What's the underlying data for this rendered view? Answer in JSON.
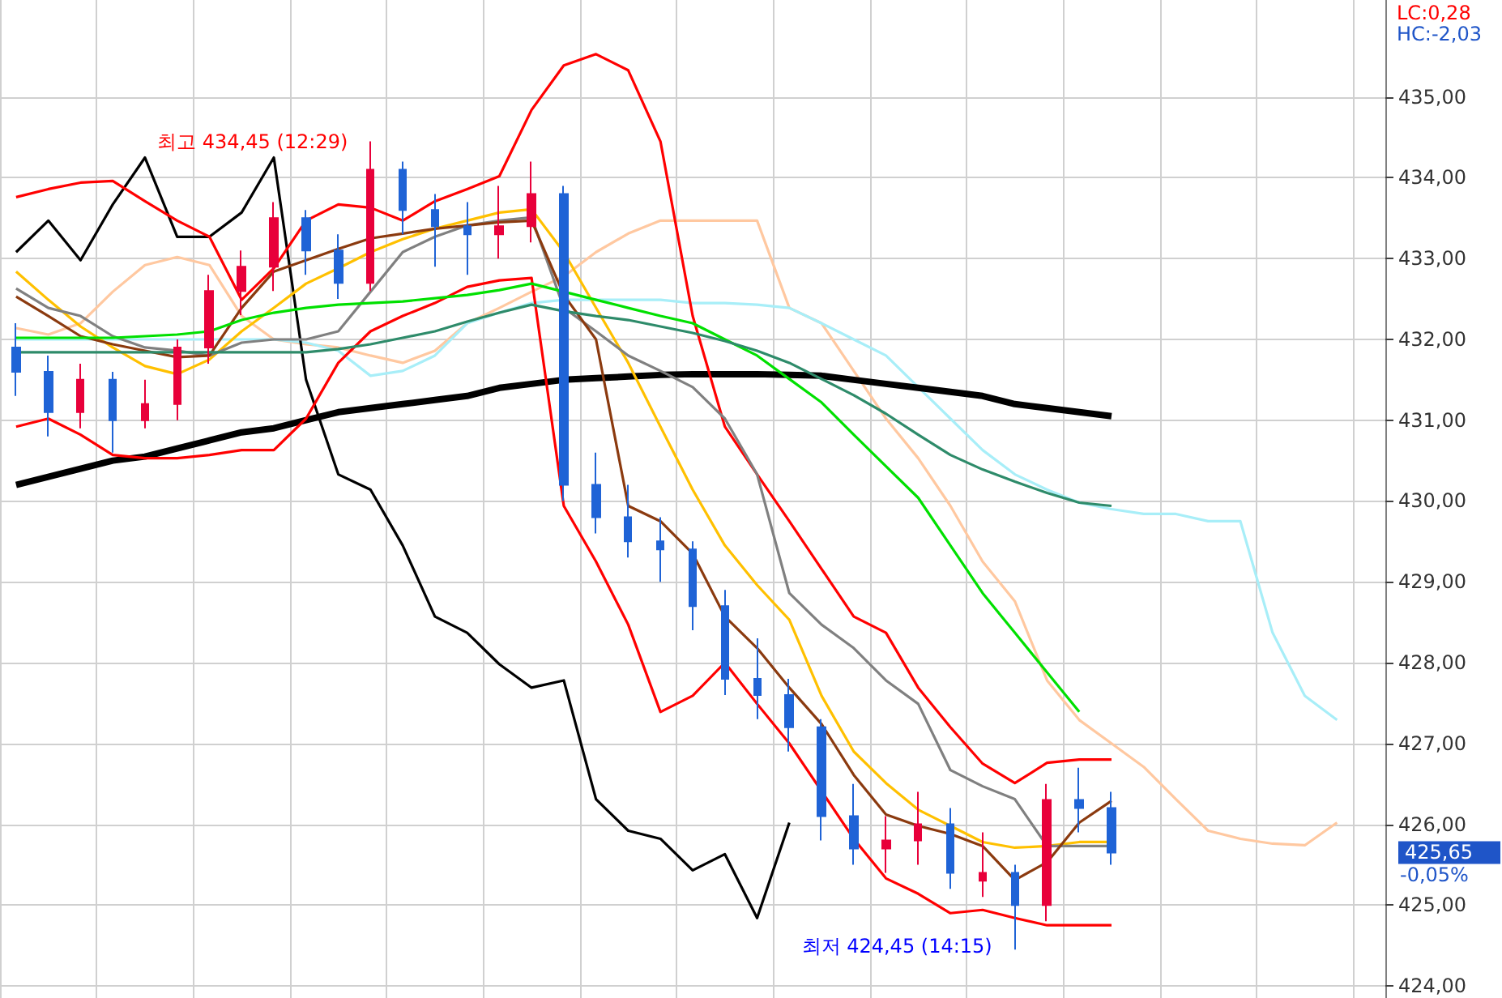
{
  "chart_data": {
    "type": "candlestick",
    "categories": [
      null,
      null,
      null,
      null,
      null,
      null,
      null,
      null,
      null,
      null,
      null,
      null,
      null,
      null,
      null,
      null,
      null,
      null,
      null,
      null,
      null,
      null,
      null,
      null,
      null,
      null,
      null,
      null,
      null,
      null,
      null,
      null,
      null,
      null,
      null,
      null,
      null,
      null,
      null,
      null,
      null,
      null,
      null
    ],
    "ylim": [
      423.85,
      436.2
    ],
    "yticks": [
      {
        "value": 424,
        "label": "424,00"
      },
      {
        "value": 425,
        "label": "425,00"
      },
      {
        "value": 426,
        "label": "426,00"
      },
      {
        "value": 427,
        "label": "427,00"
      },
      {
        "value": 428,
        "label": "428,00"
      },
      {
        "value": 429,
        "label": "429,00"
      },
      {
        "value": 430,
        "label": "430,00"
      },
      {
        "value": 431,
        "label": "431,00"
      },
      {
        "value": 432,
        "label": "432,00"
      },
      {
        "value": 433,
        "label": "433,00"
      },
      {
        "value": 434,
        "label": "434,00"
      },
      {
        "value": 435,
        "label": "435,00"
      }
    ],
    "tick_labels": "y",
    "grid": true,
    "series": [
      {
        "type": "line",
        "color": "#ffc8a0",
        "values": [
          432.14,
          432.06,
          432.2,
          432.59,
          432.92,
          433.02,
          432.92,
          432.29,
          432.0,
          431.94,
          431.9,
          431.8,
          431.71,
          431.86,
          432.2,
          432.39,
          432.59,
          432.78,
          433.08,
          433.31,
          433.47,
          433.47,
          433.47,
          433.47,
          432.39,
          432.2,
          431.61,
          431.02,
          430.53,
          429.94,
          429.25,
          428.76,
          427.78,
          427.29,
          427.0,
          426.71,
          426.31,
          425.92,
          425.82,
          425.76,
          425.74,
          426.02,
          null
        ]
      },
      {
        "type": "line",
        "color": "#a8eef8",
        "values": [
          432.0,
          432.0,
          432.0,
          432.0,
          432.0,
          432.0,
          432.0,
          432.0,
          432.0,
          431.96,
          431.86,
          431.55,
          431.61,
          431.8,
          432.2,
          432.33,
          432.45,
          432.49,
          432.49,
          432.49,
          432.49,
          432.45,
          432.45,
          432.43,
          432.39,
          432.2,
          432.0,
          431.8,
          431.41,
          431.02,
          430.63,
          430.33,
          430.14,
          429.98,
          429.9,
          429.84,
          429.84,
          429.75,
          429.75,
          428.37,
          427.59,
          427.29,
          null
        ]
      },
      {
        "type": "line",
        "color": "#000000",
        "values": [
          430.2,
          430.3,
          430.4,
          430.5,
          430.55,
          430.65,
          430.75,
          430.85,
          430.9,
          431.0,
          431.1,
          431.15,
          431.2,
          431.25,
          431.3,
          431.4,
          431.45,
          431.5,
          431.52,
          431.54,
          431.56,
          431.57,
          431.57,
          431.57,
          431.56,
          431.55,
          431.5,
          431.45,
          431.4,
          431.35,
          431.3,
          431.2,
          431.15,
          431.1,
          431.05,
          null,
          null,
          null,
          null,
          null,
          null,
          null,
          null
        ]
      },
      {
        "type": "line",
        "color": "#000000",
        "values": [
          433.08,
          433.47,
          432.98,
          433.67,
          434.25,
          433.27,
          433.27,
          433.57,
          434.25,
          431.5,
          430.33,
          430.14,
          429.45,
          428.57,
          428.37,
          427.98,
          427.69,
          427.78,
          426.31,
          425.92,
          425.82,
          425.43,
          425.63,
          424.84,
          426.02,
          null,
          null,
          null,
          null,
          null,
          null,
          null,
          null,
          null,
          null,
          null,
          null,
          null,
          null,
          null,
          null,
          null,
          null
        ]
      },
      {
        "type": "line",
        "color": "#ff0000",
        "values": [
          433.76,
          433.86,
          433.94,
          433.96,
          433.71,
          433.47,
          433.27,
          432.49,
          432.88,
          433.47,
          433.67,
          433.63,
          433.47,
          433.71,
          433.86,
          434.02,
          434.84,
          435.39,
          435.53,
          435.33,
          434.45,
          432.29,
          430.92,
          430.33,
          429.75,
          429.16,
          428.57,
          428.37,
          427.69,
          427.2,
          426.75,
          426.51,
          426.76,
          426.8,
          426.8,
          null,
          null,
          null,
          null,
          null,
          null,
          null,
          null
        ]
      },
      {
        "type": "line",
        "color": "#ff0000",
        "values": [
          430.92,
          431.02,
          430.82,
          430.57,
          430.53,
          430.53,
          430.57,
          430.63,
          430.63,
          431.02,
          431.71,
          432.1,
          432.29,
          432.45,
          432.65,
          432.73,
          432.76,
          429.94,
          429.25,
          428.47,
          427.39,
          427.59,
          428.0,
          427.49,
          427.0,
          426.41,
          425.82,
          425.33,
          425.14,
          424.9,
          424.94,
          424.84,
          424.75,
          424.75,
          424.75,
          null,
          null,
          null,
          null,
          null,
          null,
          null,
          null
        ]
      },
      {
        "type": "line",
        "color": "#ffc000",
        "values": [
          432.84,
          432.49,
          432.16,
          431.9,
          431.67,
          431.57,
          431.75,
          432.1,
          432.39,
          432.69,
          432.88,
          433.08,
          433.24,
          433.37,
          433.47,
          433.57,
          433.61,
          433.08,
          432.39,
          431.71,
          430.92,
          430.14,
          429.45,
          428.96,
          428.53,
          427.59,
          426.9,
          426.51,
          426.18,
          425.98,
          425.78,
          425.71,
          425.73,
          425.78,
          425.78,
          null,
          null,
          null,
          null,
          null,
          null,
          null,
          null
        ]
      },
      {
        "type": "line",
        "color": "#808080",
        "values": [
          432.63,
          432.39,
          432.29,
          432.04,
          431.9,
          431.86,
          431.8,
          431.96,
          432.0,
          432.0,
          432.1,
          432.59,
          433.08,
          433.27,
          433.41,
          433.47,
          433.51,
          432.39,
          432.1,
          431.8,
          431.61,
          431.41,
          431.02,
          430.33,
          428.86,
          428.47,
          428.18,
          427.78,
          427.49,
          426.67,
          426.47,
          426.31,
          425.73,
          425.73,
          425.73,
          null,
          null,
          null,
          null,
          null,
          null,
          null,
          null
        ]
      },
      {
        "type": "line",
        "color": "#8b3a0f",
        "values": [
          432.53,
          432.29,
          432.04,
          431.94,
          431.86,
          431.78,
          431.8,
          432.39,
          432.84,
          432.98,
          433.12,
          433.25,
          433.31,
          433.37,
          433.41,
          433.45,
          433.47,
          432.55,
          432.0,
          429.94,
          429.75,
          429.35,
          428.57,
          428.18,
          427.69,
          427.24,
          426.61,
          426.12,
          425.98,
          425.88,
          425.73,
          425.31,
          425.53,
          426.02,
          426.29,
          null,
          null,
          null,
          null,
          null,
          null,
          null,
          null
        ]
      },
      {
        "type": "line",
        "color": "#00e000",
        "values": [
          432.02,
          432.02,
          432.02,
          432.02,
          432.04,
          432.06,
          432.1,
          432.24,
          432.33,
          432.39,
          432.43,
          432.45,
          432.47,
          432.51,
          432.55,
          432.61,
          432.69,
          432.59,
          432.49,
          432.39,
          432.29,
          432.2,
          432.0,
          431.8,
          431.51,
          431.22,
          430.82,
          430.43,
          430.04,
          429.45,
          428.86,
          428.37,
          427.88,
          427.39,
          null,
          null,
          null,
          null,
          null,
          null,
          null,
          null,
          null
        ]
      },
      {
        "type": "line",
        "color": "#2e8b6a",
        "values": [
          431.84,
          431.84,
          431.84,
          431.84,
          431.84,
          431.84,
          431.84,
          431.84,
          431.84,
          431.84,
          431.88,
          431.94,
          432.02,
          432.1,
          432.22,
          432.33,
          432.43,
          432.35,
          432.29,
          432.24,
          432.16,
          432.08,
          431.98,
          431.86,
          431.71,
          431.51,
          431.31,
          431.08,
          430.82,
          430.57,
          430.39,
          430.24,
          430.1,
          429.98,
          429.94,
          null,
          null,
          null,
          null,
          null,
          null,
          null,
          null
        ]
      },
      {
        "ohlc": [
          [
            431.9,
            432.2,
            431.3,
            431.6
          ],
          [
            431.6,
            431.8,
            430.8,
            431.1
          ],
          [
            431.1,
            431.7,
            430.9,
            431.5
          ],
          [
            431.5,
            431.6,
            430.6,
            431.0
          ],
          [
            431.0,
            431.5,
            430.9,
            431.2
          ],
          [
            431.2,
            432.0,
            431.0,
            431.9
          ],
          [
            431.9,
            432.8,
            431.7,
            432.6
          ],
          [
            432.6,
            433.1,
            432.3,
            432.9
          ],
          [
            432.9,
            433.7,
            432.6,
            433.5
          ],
          [
            433.5,
            433.6,
            432.8,
            433.1
          ],
          [
            433.1,
            433.3,
            432.5,
            432.7
          ],
          [
            432.7,
            434.45,
            432.6,
            434.1
          ],
          [
            434.1,
            434.2,
            433.3,
            433.6
          ],
          [
            433.6,
            433.8,
            432.9,
            433.4
          ],
          [
            433.4,
            433.7,
            432.8,
            433.3
          ],
          [
            433.3,
            433.9,
            433.0,
            433.4
          ],
          [
            433.4,
            434.2,
            433.2,
            433.8
          ],
          [
            433.8,
            433.9,
            430.0,
            430.2
          ],
          [
            430.2,
            430.6,
            429.6,
            429.8
          ],
          [
            429.8,
            430.2,
            429.3,
            429.5
          ],
          [
            429.5,
            429.8,
            429.0,
            429.4
          ],
          [
            429.4,
            429.5,
            428.4,
            428.7
          ],
          [
            428.7,
            428.9,
            427.6,
            427.8
          ],
          [
            427.8,
            428.3,
            427.3,
            427.6
          ],
          [
            427.6,
            427.8,
            426.9,
            427.2
          ],
          [
            427.2,
            427.3,
            425.8,
            426.1
          ],
          [
            426.1,
            426.5,
            425.5,
            425.7
          ],
          [
            425.7,
            426.1,
            425.4,
            425.8
          ],
          [
            425.8,
            426.4,
            425.5,
            426.0
          ],
          [
            426.0,
            426.2,
            425.2,
            425.4
          ],
          [
            425.3,
            425.9,
            425.1,
            425.4
          ],
          [
            425.4,
            425.5,
            424.45,
            425.0
          ],
          [
            425.0,
            426.5,
            424.8,
            426.3
          ],
          [
            426.3,
            426.7,
            425.9,
            426.2
          ],
          [
            426.2,
            426.4,
            425.5,
            425.65
          ],
          null,
          null,
          null,
          null,
          null,
          null,
          null,
          null
        ],
        "colors": [
          "#1f63d6",
          "#1f63d6",
          "#e8003a",
          "#1f63d6",
          "#e8003a",
          "#e8003a",
          "#e8003a",
          "#e8003a",
          "#e8003a",
          "#1f63d6",
          "#1f63d6",
          "#e8003a",
          "#1f63d6",
          "#1f63d6",
          "#1f63d6",
          "#e8003a",
          "#e8003a",
          "#1f63d6",
          "#1f63d6",
          "#1f63d6",
          "#1f63d6",
          "#1f63d6",
          "#1f63d6",
          "#1f63d6",
          "#1f63d6",
          "#1f63d6",
          "#1f63d6",
          "#e8003a",
          "#e8003a",
          "#1f63d6",
          "#e8003a",
          "#1f63d6",
          "#e8003a",
          "#1f63d6",
          "#1f63d6",
          null,
          null,
          null,
          null,
          null,
          null,
          null,
          null
        ]
      }
    ],
    "annotations": [
      "최고 434,45 (12:29)",
      "최저 424,45 (14:15)",
      "LC:0,28",
      "HC:-2,03",
      "425,65",
      "-0,05%"
    ]
  }
}
